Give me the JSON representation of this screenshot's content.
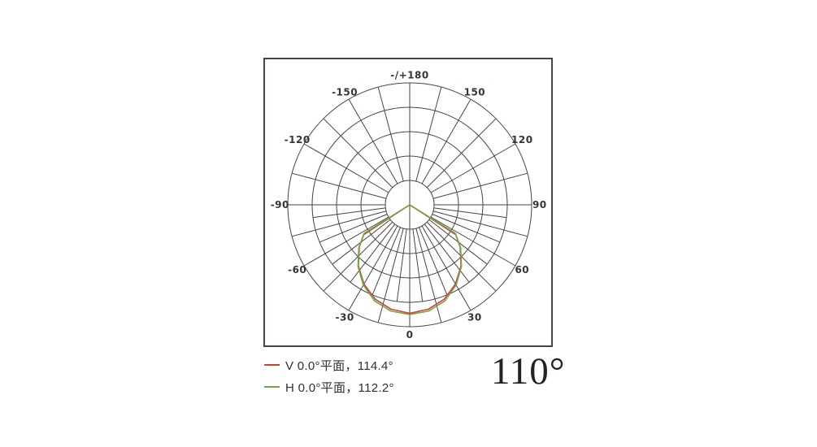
{
  "chart_data": {
    "type": "polar",
    "title": "Luminous intensity distribution (polar)",
    "angle_unit": "degrees from nadir (0 = straight down, ±180 = up)",
    "grid": {
      "rings_relative": [
        0.2,
        0.4,
        0.6,
        0.8,
        1.0
      ],
      "major_angle_step_deg": 15,
      "minor_angle_step_deg": 7.5,
      "minor_lines_note": "minor spokes only in lower half (-90..90), from ring 0.2 to ring 0.8",
      "hub_relative_radius": 0.2,
      "grid_color": "#4a4242"
    },
    "angle_labels": [
      {
        "angle": 0,
        "text": "0"
      },
      {
        "angle": 30,
        "text": "30"
      },
      {
        "angle": 60,
        "text": "60"
      },
      {
        "angle": 90,
        "text": "90"
      },
      {
        "angle": 120,
        "text": "120"
      },
      {
        "angle": 150,
        "text": "150"
      },
      {
        "angle": 180,
        "text": "-/+180"
      },
      {
        "angle": -150,
        "text": "-150"
      },
      {
        "angle": -120,
        "text": "-120"
      },
      {
        "angle": -90,
        "text": "-90"
      },
      {
        "angle": -60,
        "text": "-60"
      },
      {
        "angle": -30,
        "text": "-30"
      }
    ],
    "series": [
      {
        "name": "V 0.0°平面",
        "beam_angle_deg": 114.4,
        "color": "#cd4132",
        "points": [
          [
            -90,
            0
          ],
          [
            -62,
            0
          ],
          [
            -57,
            0.45
          ],
          [
            -50,
            0.54
          ],
          [
            -40,
            0.655
          ],
          [
            -30,
            0.75
          ],
          [
            -20,
            0.825
          ],
          [
            -10,
            0.87
          ],
          [
            0,
            0.89
          ],
          [
            10,
            0.87
          ],
          [
            20,
            0.825
          ],
          [
            30,
            0.75
          ],
          [
            40,
            0.655
          ],
          [
            50,
            0.54
          ],
          [
            57,
            0.45
          ],
          [
            62,
            0
          ],
          [
            90,
            0
          ]
        ]
      },
      {
        "name": "H 0.0°平面",
        "beam_angle_deg": 112.2,
        "color": "#6fa743",
        "points": [
          [
            -90,
            0
          ],
          [
            -61,
            0
          ],
          [
            -58,
            0.44
          ],
          [
            -50,
            0.545
          ],
          [
            -40,
            0.66
          ],
          [
            -30,
            0.76
          ],
          [
            -20,
            0.84
          ],
          [
            -10,
            0.885
          ],
          [
            0,
            0.9
          ],
          [
            10,
            0.885
          ],
          [
            20,
            0.84
          ],
          [
            30,
            0.76
          ],
          [
            40,
            0.66
          ],
          [
            50,
            0.545
          ],
          [
            58,
            0.44
          ],
          [
            61,
            0
          ],
          [
            90,
            0
          ]
        ]
      }
    ]
  },
  "legend": {
    "items": [
      {
        "label": "V 0.0°平面，114.4°",
        "color": "#cd4132"
      },
      {
        "label": "H 0.0°平面，112.2°",
        "color": "#6fa743"
      }
    ]
  },
  "footer": {
    "beam_angle": "110°"
  }
}
